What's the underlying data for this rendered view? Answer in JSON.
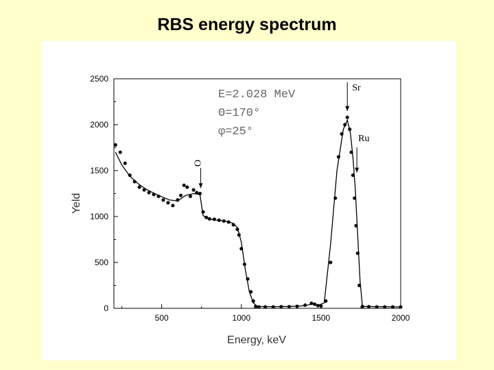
{
  "slide": {
    "title": "RBS energy spectrum"
  },
  "chart_data": {
    "type": "scatter",
    "xlabel": "Energy, keV",
    "ylabel": "Yeld",
    "xlim": [
      200,
      2000
    ],
    "ylim": [
      0,
      2500
    ],
    "x_ticks": [
      "500",
      "1000",
      "1500",
      "2000"
    ],
    "x_tick_values": [
      500,
      1000,
      1500,
      2000
    ],
    "y_ticks": [
      "0",
      "500",
      "1000",
      "1500",
      "2000",
      "2500"
    ],
    "y_tick_values": [
      0,
      500,
      1000,
      1500,
      2000,
      2500
    ],
    "grid": false,
    "params": [
      "E=2.028 MeV",
      "Θ=170°",
      "φ=25°"
    ],
    "annotations": [
      {
        "label": "O",
        "x": 745,
        "y_tip": 1280
      },
      {
        "label": "Sr",
        "x": 1665,
        "y_tip": 2120
      },
      {
        "label": "Ru",
        "x": 1725,
        "y_tip": 1450
      }
    ],
    "series": [
      {
        "style": "points",
        "x": [
          210,
          240,
          270,
          300,
          330,
          360,
          390,
          420,
          450,
          480,
          510,
          540,
          570,
          600,
          620,
          640,
          660,
          680,
          700,
          720,
          740,
          760,
          780,
          800,
          830,
          860,
          890,
          920,
          950,
          975,
          985,
          1000,
          1020,
          1040,
          1060,
          1075,
          1090,
          1110,
          1150,
          1200,
          1250,
          1300,
          1350,
          1400,
          1440,
          1460,
          1480,
          1500,
          1530,
          1560,
          1590,
          1610,
          1630,
          1650,
          1665,
          1680,
          1690,
          1700,
          1710,
          1720,
          1730,
          1740,
          1760,
          1800,
          1850,
          1900,
          1950,
          2000
        ],
        "y": [
          1780,
          1700,
          1580,
          1450,
          1380,
          1320,
          1290,
          1260,
          1240,
          1220,
          1180,
          1150,
          1120,
          1180,
          1230,
          1340,
          1320,
          1220,
          1290,
          1260,
          1250,
          1050,
          990,
          975,
          970,
          960,
          950,
          940,
          910,
          860,
          800,
          650,
          480,
          320,
          180,
          80,
          20,
          15,
          15,
          15,
          18,
          18,
          22,
          35,
          55,
          45,
          30,
          25,
          80,
          500,
          1200,
          1650,
          1900,
          2000,
          2080,
          1950,
          1700,
          1450,
          1200,
          900,
          600,
          250,
          20,
          18,
          15,
          15,
          15,
          15
        ]
      },
      {
        "style": "line",
        "x": [
          210,
          250,
          300,
          350,
          400,
          450,
          500,
          550,
          600,
          650,
          700,
          740,
          760,
          800,
          850,
          900,
          950,
          975,
          1000,
          1025,
          1050,
          1075,
          1100,
          1200,
          1300,
          1400,
          1450,
          1480,
          1520,
          1560,
          1600,
          1640,
          1665,
          1685,
          1700,
          1715,
          1730,
          1745,
          1760,
          2000
        ],
        "y": [
          1700,
          1560,
          1440,
          1360,
          1300,
          1255,
          1215,
          1180,
          1170,
          1230,
          1250,
          1240,
          1010,
          970,
          960,
          950,
          925,
          880,
          720,
          420,
          180,
          60,
          20,
          18,
          20,
          28,
          50,
          30,
          60,
          700,
          1500,
          1950,
          2050,
          1900,
          1650,
          1300,
          800,
          300,
          20,
          15
        ]
      }
    ]
  }
}
